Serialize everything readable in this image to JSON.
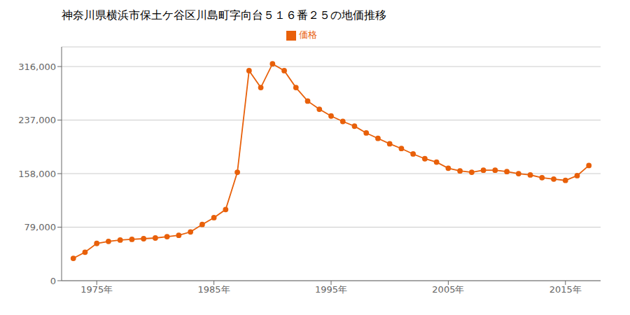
{
  "chart_data": {
    "type": "line",
    "title": "神奈川県横浜市保土ケ谷区川島町字向台５１６番２５の地価推移",
    "x": [
      1973,
      1974,
      1975,
      1976,
      1977,
      1978,
      1979,
      1980,
      1981,
      1982,
      1983,
      1984,
      1985,
      1986,
      1987,
      1988,
      1989,
      1990,
      1991,
      1992,
      1993,
      1994,
      1995,
      1996,
      1997,
      1998,
      1999,
      2000,
      2001,
      2002,
      2003,
      2004,
      2005,
      2006,
      2007,
      2008,
      2009,
      2010,
      2011,
      2012,
      2013,
      2014,
      2015,
      2016,
      2017
    ],
    "series": [
      {
        "name": "価格",
        "color": "#e8600a",
        "marker": "circle",
        "values": [
          33000,
          42000,
          55000,
          58000,
          60000,
          61000,
          62000,
          63000,
          65000,
          67000,
          72000,
          83000,
          93000,
          105000,
          160000,
          310000,
          285000,
          320000,
          310000,
          285000,
          265000,
          253000,
          243000,
          235000,
          228000,
          218000,
          210000,
          202000,
          195000,
          187000,
          180000,
          175000,
          166000,
          162000,
          160000,
          163000,
          163000,
          161000,
          158000,
          156000,
          152000,
          150000,
          148000,
          155000,
          170000
        ]
      }
    ],
    "xlim": [
      1972,
      2018
    ],
    "xticks": [
      {
        "value": 1975,
        "label": "1975年"
      },
      {
        "value": 1985,
        "label": "1985年"
      },
      {
        "value": 1995,
        "label": "1995年"
      },
      {
        "value": 2005,
        "label": "2005年"
      },
      {
        "value": 2015,
        "label": "2015年"
      }
    ],
    "ylim": [
      0,
      345000
    ],
    "yticks": [
      0,
      {
        "value": 79000,
        "label": "79,000"
      },
      {
        "value": 158000,
        "label": "158,000"
      },
      {
        "value": 237000,
        "label": "237,000"
      },
      {
        "value": 316000,
        "label": "316,000"
      }
    ],
    "grid": "y",
    "legend": "top"
  }
}
